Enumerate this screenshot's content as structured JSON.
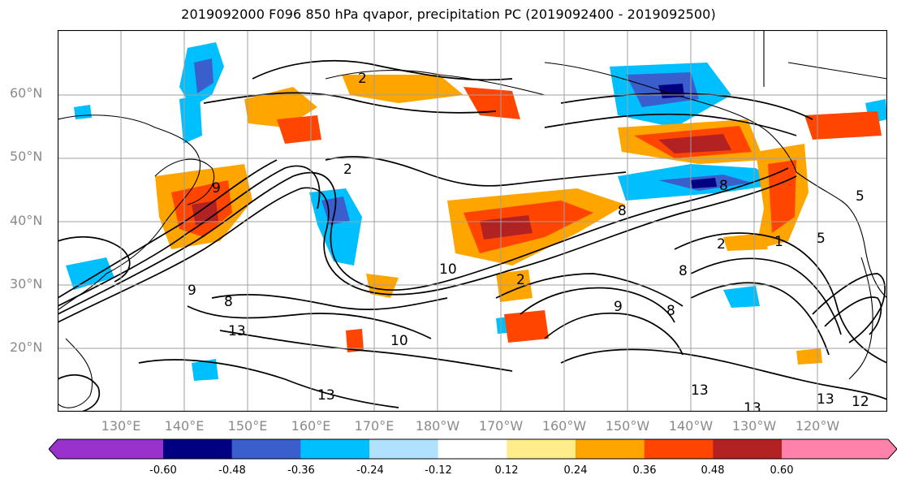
{
  "title": "2019092000 F096 850 hPa qvapor, precipitation PC (2019092400 - 2019092500)",
  "lat_labels": [
    "60°N",
    "50°N",
    "40°N",
    "30°N",
    "20°N"
  ],
  "lon_labels": [
    "130°E",
    "140°E",
    "150°E",
    "160°E",
    "170°E",
    "180°W",
    "170°W",
    "160°W",
    "150°W",
    "140°W",
    "130°W",
    "120°W"
  ],
  "contour_labels": [
    "2",
    "2",
    "2",
    "13",
    "9",
    "9",
    "8",
    "10",
    "10",
    "8",
    "8",
    "9",
    "8",
    "8",
    "2",
    "1",
    "5",
    "5",
    "13",
    "13",
    "13",
    "12",
    "13"
  ],
  "colorbar": {
    "ticks": [
      "-0.60",
      "-0.48",
      "-0.36",
      "-0.24",
      "-0.12",
      "0.12",
      "0.24",
      "0.36",
      "0.48",
      "0.60"
    ],
    "colors": [
      "#9932cc",
      "#000080",
      "#3a5fcd",
      "#00bfff",
      "#b0e2ff",
      "#ffffff",
      "#ffec8b",
      "#ffa500",
      "#ff4500",
      "#b22222",
      "#ff82ab"
    ]
  }
}
